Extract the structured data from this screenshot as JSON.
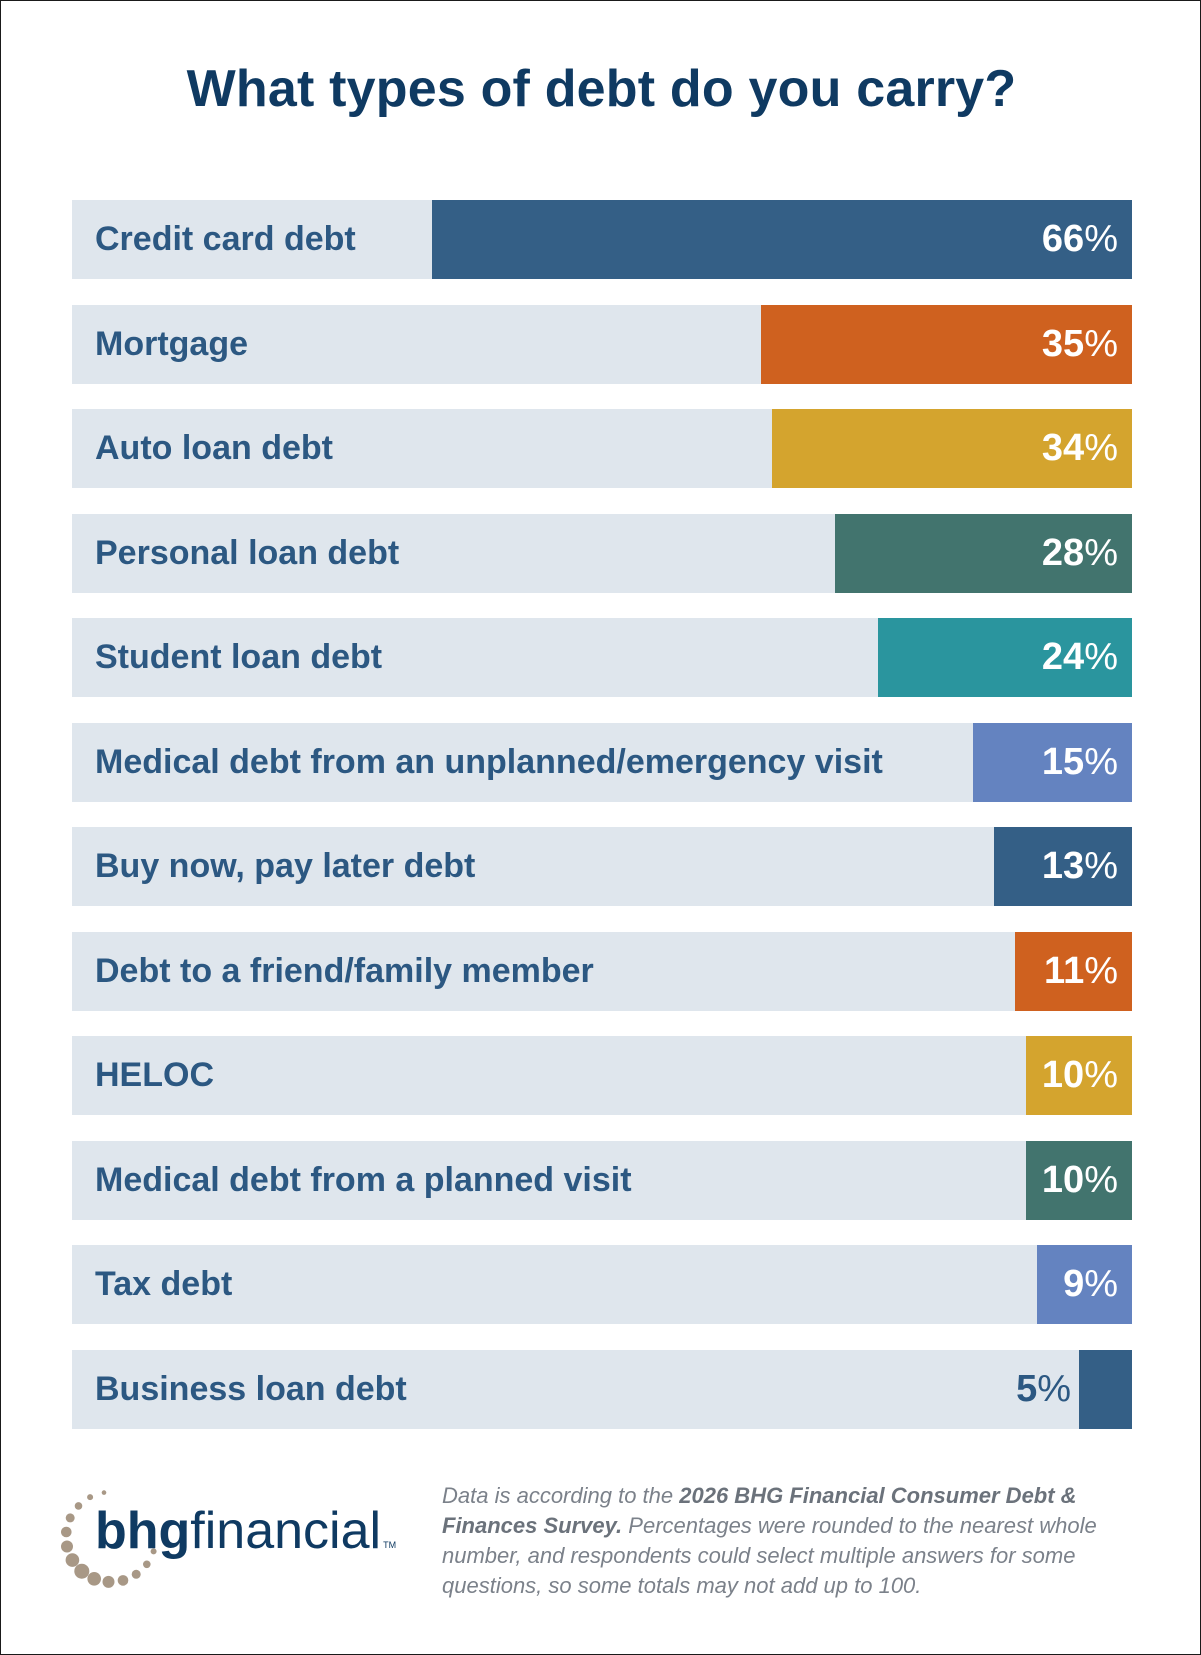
{
  "chart_data": {
    "type": "bar",
    "orientation": "horizontal",
    "title": "What types of debt do you carry?",
    "categories": [
      "Credit card debt",
      "Mortgage",
      "Auto loan debt",
      "Personal loan debt",
      "Student loan debt",
      "Medical debt from an unplanned/emergency visit",
      "Buy now, pay later debt",
      "Debt to a friend/family member",
      "HELOC",
      "Medical debt from a planned visit",
      "Tax debt",
      "Business loan debt"
    ],
    "values": [
      66,
      35,
      34,
      28,
      24,
      15,
      13,
      11,
      10,
      10,
      9,
      5
    ],
    "value_unit": "%",
    "colors": [
      "#345f86",
      "#cf611f",
      "#d4a42e",
      "#42746e",
      "#2a959e",
      "#6483c0",
      "#345f86",
      "#cf611f",
      "#d4a42e",
      "#42746e",
      "#6483c0",
      "#345f86"
    ],
    "background_color": "#dfe6ed",
    "xlim": [
      0,
      100
    ],
    "grid": false,
    "legend": "none"
  },
  "branding": {
    "logo_bold": "bhg",
    "logo_light": "financial",
    "logo_tm": "TM",
    "logo_color": "#0f3a62",
    "dot_color": "#a89886"
  },
  "footnote": {
    "lead": "Data is according to the ",
    "source": "2026 BHG Financial Consumer Debt & Finances Survey.",
    "rest": " Percentages were rounded to the nearest whole number, and respondents could select multiple answers for some questions, so some totals may not add up to 100."
  }
}
